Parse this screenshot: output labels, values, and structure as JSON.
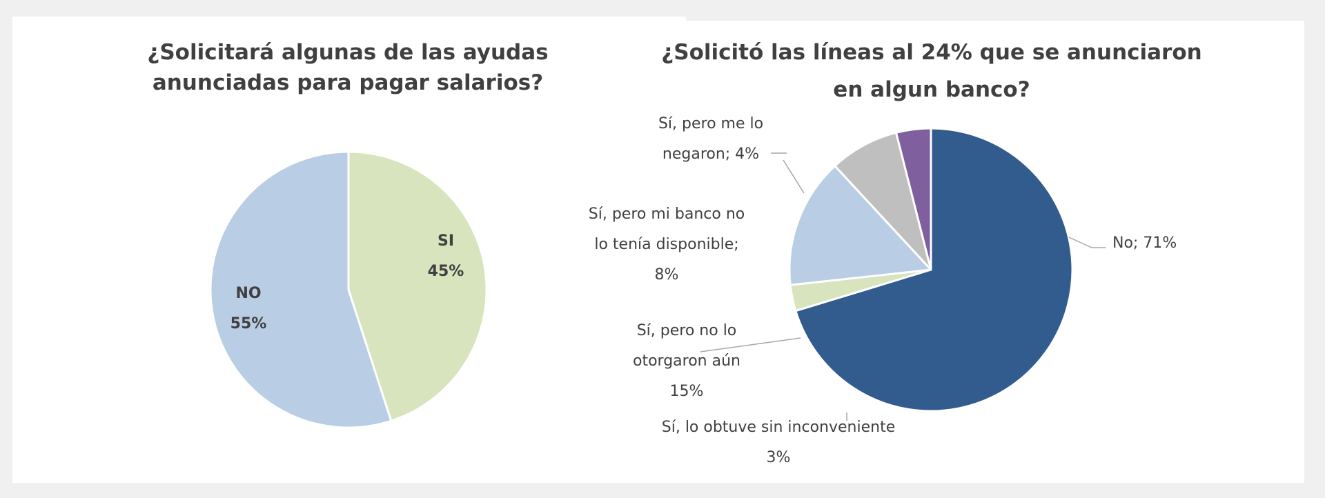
{
  "chart_data": [
    {
      "type": "pie",
      "title_lines": [
        "¿Solicitará algunas de las ayudas",
        "anunciadas para pagar salarios?"
      ],
      "slices": [
        {
          "label": "SI",
          "value": 45,
          "value_text": "45%",
          "color": "#d7e4bd"
        },
        {
          "label": "NO",
          "value": 55,
          "value_text": "55%",
          "color": "#b9cde5"
        }
      ]
    },
    {
      "type": "pie",
      "title_lines": [
        "¿Solicitó las líneas al 24% que se anunciaron",
        "en algun banco?"
      ],
      "slices": [
        {
          "label": "No",
          "value": 71,
          "label_lines": [
            "No; 71%"
          ],
          "color": "#335c8e"
        },
        {
          "label": "Sí, lo obtuve sin inconveniente",
          "value": 3,
          "label_lines": [
            "Sí, lo obtuve sin inconveniente",
            "3%"
          ],
          "color": "#d7e4bd"
        },
        {
          "label": "Sí, pero no lo otorgaron aún",
          "value": 15,
          "label_lines": [
            "Sí, pero no lo",
            "otorgaron aún",
            "15%"
          ],
          "color": "#b9cde5"
        },
        {
          "label": "Sí, pero mi banco no lo tenía disponible",
          "value": 8,
          "label_lines": [
            "Sí, pero mi banco no",
            "lo tenía disponible;",
            "8%"
          ],
          "color": "#bfbfbf"
        },
        {
          "label": "Sí, pero me lo negaron",
          "value": 4,
          "label_lines": [
            "Sí, pero me lo",
            "negaron; 4%"
          ],
          "color": "#7f5f9e"
        }
      ]
    }
  ]
}
